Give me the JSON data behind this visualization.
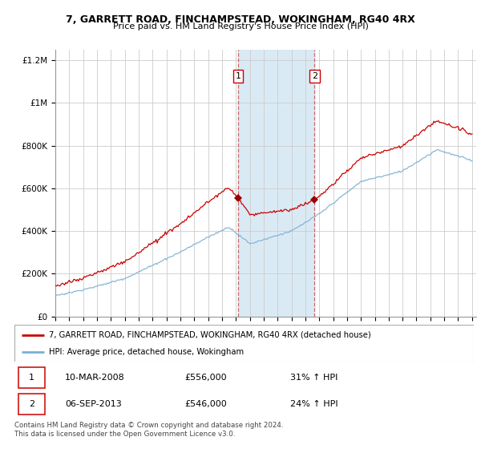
{
  "title1": "7, GARRETT ROAD, FINCHAMPSTEAD, WOKINGHAM, RG40 4RX",
  "title2": "Price paid vs. HM Land Registry's House Price Index (HPI)",
  "legend_label1": "7, GARRETT ROAD, FINCHAMPSTEAD, WOKINGHAM, RG40 4RX (detached house)",
  "legend_label2": "HPI: Average price, detached house, Wokingham",
  "transaction1_date": "10-MAR-2008",
  "transaction1_price": "£556,000",
  "transaction1_hpi": "31% ↑ HPI",
  "transaction2_date": "06-SEP-2013",
  "transaction2_price": "£546,000",
  "transaction2_hpi": "24% ↑ HPI",
  "footer": "Contains HM Land Registry data © Crown copyright and database right 2024.\nThis data is licensed under the Open Government Licence v3.0.",
  "color_red": "#cc0000",
  "color_blue": "#7bafd4",
  "color_shading": "#daeaf5",
  "ylim_min": 0,
  "ylim_max": 1250000,
  "xmin": 1995,
  "xmax": 2025.3,
  "transaction1_year": 2008.17,
  "transaction2_year": 2013.67,
  "transaction1_price_val": 556000,
  "transaction2_price_val": 546000
}
